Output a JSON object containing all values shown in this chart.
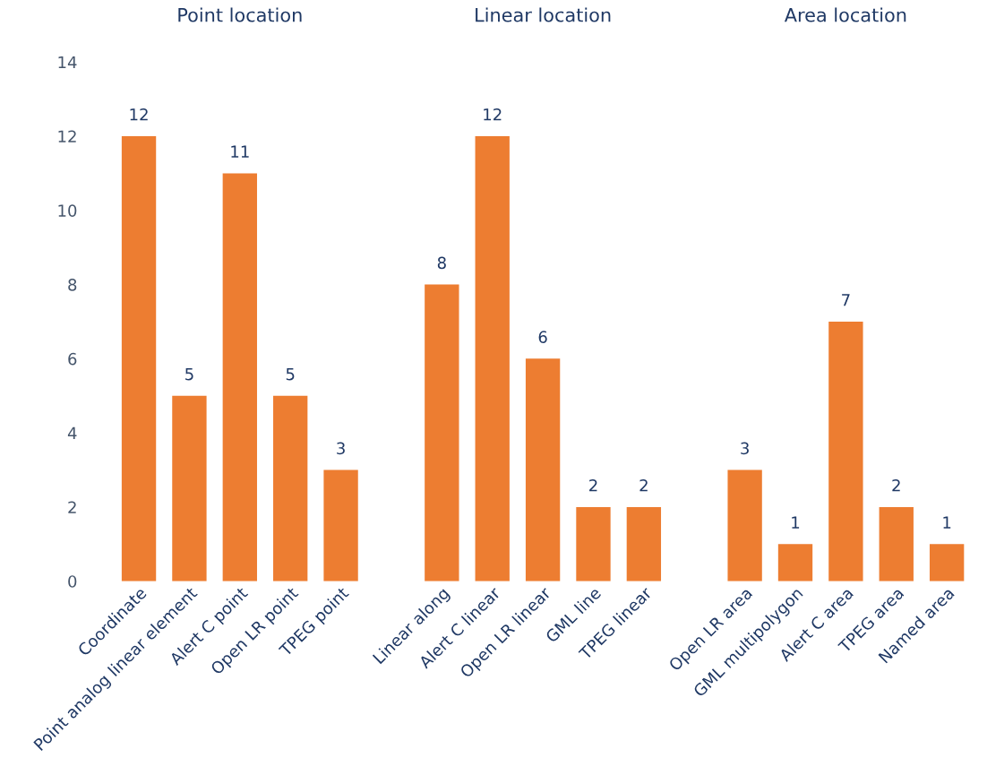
{
  "chart_data": {
    "type": "bar",
    "categories": [
      "Coordinate",
      "Point analog linear element",
      "Alert C point",
      "Open LR point",
      "TPEG point",
      null,
      "Linear along",
      "Alert C linear",
      "Open LR linear",
      "GML line",
      "TPEG linear",
      null,
      "Open LR area",
      "GML multipolygon",
      "Alert C area",
      "TPEG area",
      "Named area"
    ],
    "values": [
      12,
      5,
      11,
      5,
      3,
      null,
      8,
      12,
      6,
      2,
      2,
      null,
      3,
      1,
      7,
      2,
      1
    ],
    "color": "#ed7d31",
    "annotations": [
      "Point location",
      "Linear location",
      "Area location"
    ],
    "ylim": [
      0,
      14
    ],
    "yticks": [
      0,
      2,
      4,
      6,
      8,
      10,
      12,
      14
    ],
    "data_labels": true,
    "grid": false,
    "legend": false
  }
}
